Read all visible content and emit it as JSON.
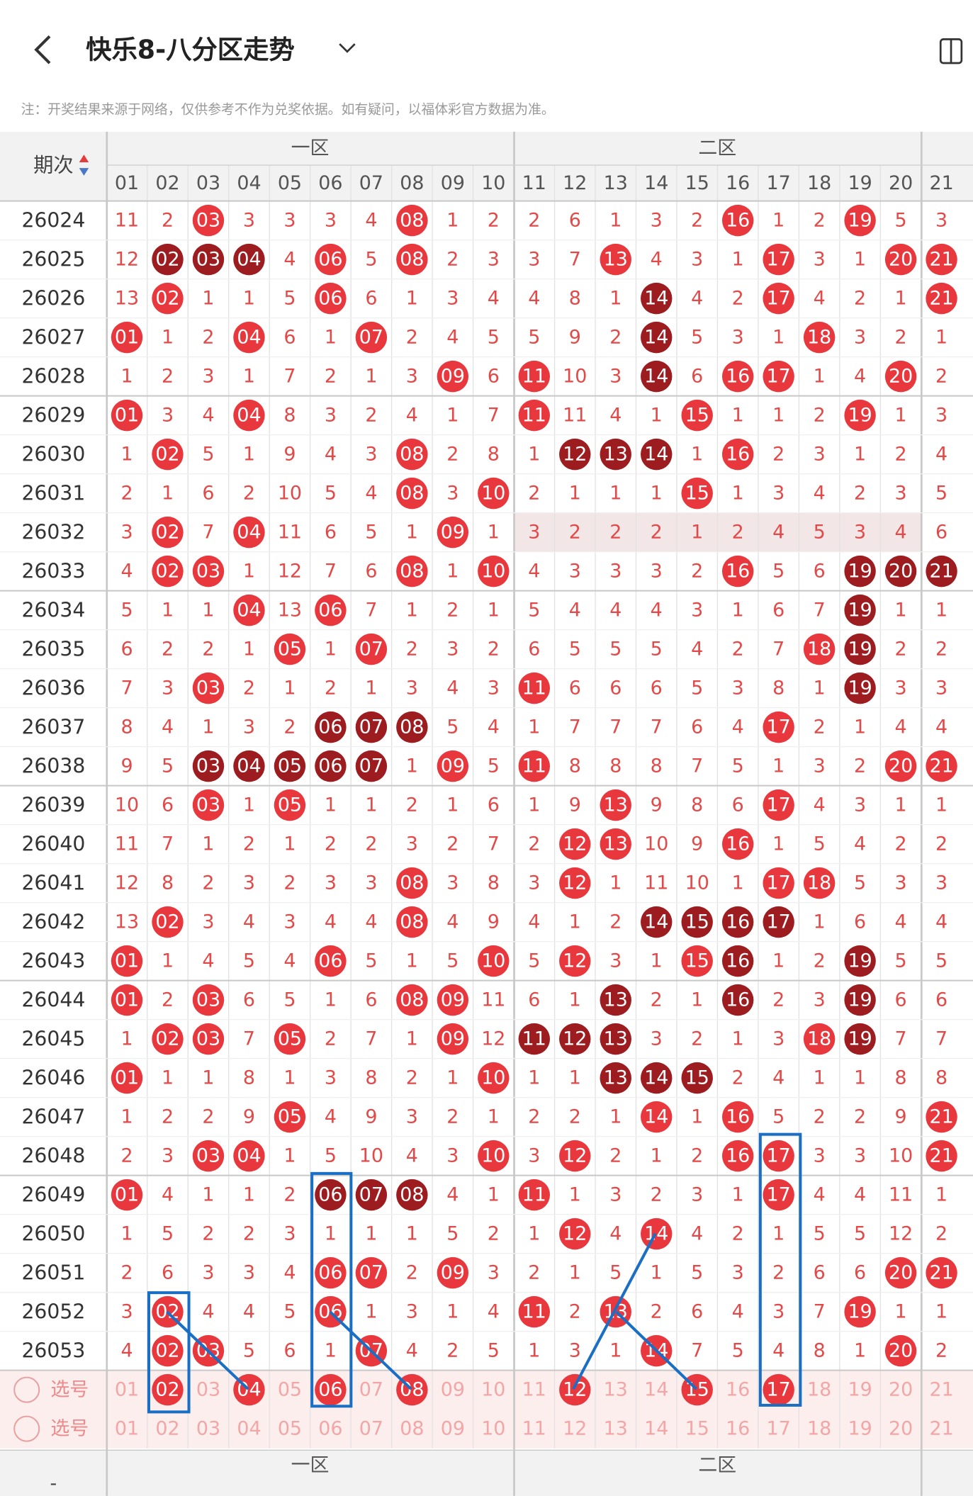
{
  "header": {
    "title": "快乐8-八分区走势"
  },
  "note": "注：开奖结果来源于网络，仅供参考不作为兑奖依据。如有疑问，以福体彩官方数据为准。",
  "table": {
    "issue_header": "期次",
    "zones": [
      "一区",
      "二区"
    ],
    "columns": [
      "01",
      "02",
      "03",
      "04",
      "05",
      "06",
      "07",
      "08",
      "09",
      "10",
      "11",
      "12",
      "13",
      "14",
      "15",
      "16",
      "17",
      "18",
      "19",
      "20",
      "21"
    ],
    "rows": [
      {
        "issue": "26024",
        "cells": [
          "11",
          "2",
          "03",
          "3",
          "3",
          "3",
          "4",
          "08",
          "1",
          "2",
          "2",
          "6",
          "1",
          "3",
          "2",
          "16",
          "1",
          "2",
          "19",
          "5",
          "3"
        ]
      },
      {
        "issue": "26025",
        "cells": [
          "12",
          "02",
          "03",
          "04",
          "4",
          "06",
          "5",
          "08",
          "2",
          "3",
          "3",
          "7",
          "13",
          "4",
          "3",
          "1",
          "17",
          "3",
          "1",
          "20",
          "21"
        ]
      },
      {
        "issue": "26026",
        "cells": [
          "13",
          "02",
          "1",
          "1",
          "5",
          "06",
          "6",
          "1",
          "3",
          "4",
          "4",
          "8",
          "1",
          "14",
          "4",
          "2",
          "17",
          "4",
          "2",
          "1",
          "21"
        ]
      },
      {
        "issue": "26027",
        "cells": [
          "01",
          "1",
          "2",
          "04",
          "6",
          "1",
          "07",
          "2",
          "4",
          "5",
          "5",
          "9",
          "2",
          "14",
          "5",
          "3",
          "1",
          "18",
          "3",
          "2",
          "1"
        ]
      },
      {
        "issue": "26028",
        "cells": [
          "1",
          "2",
          "3",
          "1",
          "7",
          "2",
          "1",
          "3",
          "09",
          "6",
          "11",
          "10",
          "3",
          "14",
          "6",
          "16",
          "17",
          "1",
          "4",
          "20",
          "2"
        ]
      },
      {
        "issue": "26029",
        "cells": [
          "01",
          "3",
          "4",
          "04",
          "8",
          "3",
          "2",
          "4",
          "1",
          "7",
          "11",
          "11",
          "4",
          "1",
          "15",
          "1",
          "1",
          "2",
          "19",
          "1",
          "3"
        ]
      },
      {
        "issue": "26030",
        "cells": [
          "1",
          "02",
          "5",
          "1",
          "9",
          "4",
          "3",
          "08",
          "2",
          "8",
          "1",
          "12",
          "13",
          "14",
          "1",
          "16",
          "2",
          "3",
          "1",
          "2",
          "4"
        ]
      },
      {
        "issue": "26031",
        "cells": [
          "2",
          "1",
          "6",
          "2",
          "10",
          "5",
          "4",
          "08",
          "3",
          "10",
          "2",
          "1",
          "1",
          "1",
          "15",
          "1",
          "3",
          "4",
          "2",
          "3",
          "5"
        ]
      },
      {
        "issue": "26032",
        "cells": [
          "3",
          "02",
          "7",
          "04",
          "11",
          "6",
          "5",
          "1",
          "09",
          "1",
          "3",
          "2",
          "2",
          "2",
          "1",
          "2",
          "4",
          "5",
          "3",
          "4",
          "6"
        ]
      },
      {
        "issue": "26033",
        "cells": [
          "4",
          "02",
          "03",
          "1",
          "12",
          "7",
          "6",
          "08",
          "1",
          "10",
          "4",
          "3",
          "3",
          "3",
          "2",
          "16",
          "5",
          "6",
          "19",
          "20",
          "21"
        ]
      },
      {
        "issue": "26034",
        "cells": [
          "5",
          "1",
          "1",
          "04",
          "13",
          "06",
          "7",
          "1",
          "2",
          "1",
          "5",
          "4",
          "4",
          "4",
          "3",
          "1",
          "6",
          "7",
          "19",
          "1",
          "1"
        ]
      },
      {
        "issue": "26035",
        "cells": [
          "6",
          "2",
          "2",
          "1",
          "05",
          "1",
          "07",
          "2",
          "3",
          "2",
          "6",
          "5",
          "5",
          "5",
          "4",
          "2",
          "7",
          "18",
          "19",
          "2",
          "2"
        ]
      },
      {
        "issue": "26036",
        "cells": [
          "7",
          "3",
          "03",
          "2",
          "1",
          "2",
          "1",
          "3",
          "4",
          "3",
          "11",
          "6",
          "6",
          "6",
          "5",
          "3",
          "8",
          "1",
          "19",
          "3",
          "3"
        ]
      },
      {
        "issue": "26037",
        "cells": [
          "8",
          "4",
          "1",
          "3",
          "2",
          "06",
          "07",
          "08",
          "5",
          "4",
          "1",
          "7",
          "7",
          "7",
          "6",
          "4",
          "17",
          "2",
          "1",
          "4",
          "4"
        ]
      },
      {
        "issue": "26038",
        "cells": [
          "9",
          "5",
          "03",
          "04",
          "05",
          "06",
          "07",
          "1",
          "09",
          "5",
          "11",
          "8",
          "8",
          "8",
          "7",
          "5",
          "1",
          "3",
          "2",
          "20",
          "21"
        ]
      },
      {
        "issue": "26039",
        "cells": [
          "10",
          "6",
          "03",
          "1",
          "05",
          "1",
          "1",
          "2",
          "1",
          "6",
          "1",
          "9",
          "13",
          "9",
          "8",
          "6",
          "17",
          "4",
          "3",
          "1",
          "1"
        ]
      },
      {
        "issue": "26040",
        "cells": [
          "11",
          "7",
          "1",
          "2",
          "1",
          "2",
          "2",
          "3",
          "2",
          "7",
          "2",
          "12",
          "13",
          "10",
          "9",
          "16",
          "1",
          "5",
          "4",
          "2",
          "2"
        ]
      },
      {
        "issue": "26041",
        "cells": [
          "12",
          "8",
          "2",
          "3",
          "2",
          "3",
          "3",
          "08",
          "3",
          "8",
          "3",
          "12",
          "1",
          "11",
          "10",
          "1",
          "17",
          "18",
          "5",
          "3",
          "3"
        ]
      },
      {
        "issue": "26042",
        "cells": [
          "13",
          "02",
          "3",
          "4",
          "3",
          "4",
          "4",
          "08",
          "4",
          "9",
          "4",
          "1",
          "2",
          "14",
          "15",
          "16",
          "17",
          "1",
          "6",
          "4",
          "4"
        ]
      },
      {
        "issue": "26043",
        "cells": [
          "01",
          "1",
          "4",
          "5",
          "4",
          "06",
          "5",
          "1",
          "5",
          "10",
          "5",
          "12",
          "3",
          "1",
          "15",
          "16",
          "1",
          "2",
          "19",
          "5",
          "5"
        ]
      },
      {
        "issue": "26044",
        "cells": [
          "01",
          "2",
          "03",
          "6",
          "5",
          "1",
          "6",
          "08",
          "09",
          "11",
          "6",
          "1",
          "13",
          "2",
          "1",
          "16",
          "2",
          "3",
          "19",
          "6",
          "6"
        ]
      },
      {
        "issue": "26045",
        "cells": [
          "1",
          "02",
          "03",
          "7",
          "05",
          "2",
          "7",
          "1",
          "09",
          "12",
          "11",
          "12",
          "13",
          "3",
          "2",
          "1",
          "3",
          "18",
          "19",
          "7",
          "7"
        ]
      },
      {
        "issue": "26046",
        "cells": [
          "01",
          "1",
          "1",
          "8",
          "1",
          "3",
          "8",
          "2",
          "1",
          "10",
          "1",
          "1",
          "13",
          "14",
          "15",
          "2",
          "4",
          "1",
          "1",
          "8",
          "8"
        ]
      },
      {
        "issue": "26047",
        "cells": [
          "1",
          "2",
          "2",
          "9",
          "05",
          "4",
          "9",
          "3",
          "2",
          "1",
          "2",
          "2",
          "1",
          "14",
          "1",
          "16",
          "5",
          "2",
          "2",
          "9",
          "21"
        ]
      },
      {
        "issue": "26048",
        "cells": [
          "2",
          "3",
          "03",
          "04",
          "1",
          "5",
          "10",
          "4",
          "3",
          "10",
          "3",
          "12",
          "2",
          "1",
          "2",
          "16",
          "17",
          "3",
          "3",
          "10",
          "21"
        ]
      },
      {
        "issue": "26049",
        "cells": [
          "01",
          "4",
          "1",
          "1",
          "2",
          "06",
          "07",
          "08",
          "4",
          "1",
          "11",
          "1",
          "3",
          "2",
          "3",
          "1",
          "17",
          "4",
          "4",
          "11",
          "1"
        ]
      },
      {
        "issue": "26050",
        "cells": [
          "1",
          "5",
          "2",
          "2",
          "3",
          "1",
          "1",
          "1",
          "5",
          "2",
          "1",
          "12",
          "4",
          "14",
          "4",
          "2",
          "1",
          "5",
          "5",
          "12",
          "2"
        ]
      },
      {
        "issue": "26051",
        "cells": [
          "2",
          "6",
          "3",
          "3",
          "4",
          "06",
          "07",
          "2",
          "09",
          "3",
          "2",
          "1",
          "5",
          "1",
          "5",
          "3",
          "2",
          "6",
          "6",
          "20",
          "21"
        ]
      },
      {
        "issue": "26052",
        "cells": [
          "3",
          "02",
          "4",
          "4",
          "5",
          "06",
          "1",
          "3",
          "1",
          "4",
          "11",
          "2",
          "13",
          "2",
          "6",
          "4",
          "3",
          "7",
          "19",
          "1",
          "1"
        ]
      },
      {
        "issue": "26053",
        "cells": [
          "4",
          "02",
          "03",
          "5",
          "6",
          "1",
          "07",
          "4",
          "2",
          "5",
          "1",
          "3",
          "1",
          "14",
          "7",
          "5",
          "4",
          "8",
          "1",
          "20",
          "2"
        ]
      }
    ],
    "pick_rows": [
      {
        "label": "选号",
        "selected_columns": [
          1,
          3,
          5,
          7,
          11,
          14,
          16
        ]
      },
      {
        "label": "选号",
        "selected_columns": []
      }
    ],
    "footer_issue": "-"
  }
}
